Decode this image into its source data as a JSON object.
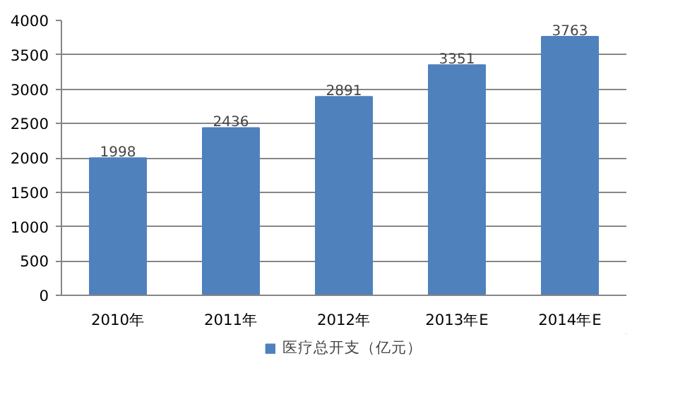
{
  "chart_data": {
    "type": "bar",
    "categories": [
      "2010年",
      "2011年",
      "2012年",
      "2013年E",
      "2014年E"
    ],
    "series": [
      {
        "name": "医疗总开支（亿元）",
        "color": "#4f81bd",
        "values": [
          1998,
          2436,
          2891,
          3351,
          3763
        ]
      }
    ],
    "ylim": [
      0,
      4000
    ],
    "yticks": [
      0,
      500,
      1000,
      1500,
      2000,
      2500,
      3000,
      3500,
      4000
    ],
    "grid": "y",
    "legend": "bottom",
    "data_labels": true
  }
}
